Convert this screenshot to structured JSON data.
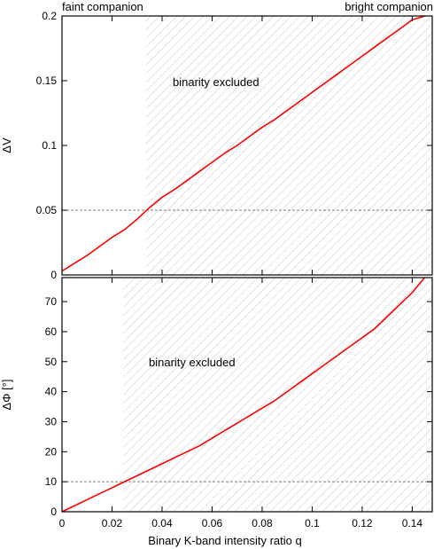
{
  "header": {
    "left_label": "faint companion",
    "right_label": "bright companion"
  },
  "colors": {
    "curve": "#ff0000",
    "hatch": "#c8c8c8",
    "threshold": "#808080",
    "axes": "#000000"
  },
  "chart_data": [
    {
      "type": "line",
      "panel": "top",
      "ylabel": "ΔV",
      "xlabel": "",
      "xlim": [
        0,
        0.148
      ],
      "ylim": [
        0,
        0.2
      ],
      "yticks": [
        0,
        0.05,
        0.1,
        0.15,
        0.2
      ],
      "ytick_labels": [
        "0",
        "0.05",
        "0.1",
        "0.15",
        "0.2"
      ],
      "xticks": [
        0,
        0.02,
        0.04,
        0.06,
        0.08,
        0.1,
        0.12,
        0.14
      ],
      "show_xtick_labels": false,
      "threshold": 0.05,
      "excluded_from_x": 0.0335,
      "annotation": "binarity excluded",
      "series": [
        {
          "x": [
            0,
            0.005,
            0.01,
            0.015,
            0.02,
            0.025,
            0.03,
            0.035,
            0.04,
            0.045,
            0.05,
            0.055,
            0.06,
            0.065,
            0.07,
            0.075,
            0.08,
            0.085,
            0.09,
            0.095,
            0.1,
            0.105,
            0.11,
            0.115,
            0.12,
            0.125,
            0.13,
            0.135,
            0.14,
            0.145
          ],
          "y": [
            0.003,
            0.009,
            0.015,
            0.022,
            0.029,
            0.035,
            0.043,
            0.052,
            0.06,
            0.066,
            0.073,
            0.08,
            0.087,
            0.094,
            0.1,
            0.107,
            0.114,
            0.12,
            0.127,
            0.134,
            0.141,
            0.148,
            0.155,
            0.162,
            0.169,
            0.176,
            0.183,
            0.19,
            0.197,
            0.202
          ]
        }
      ]
    },
    {
      "type": "line",
      "panel": "bottom",
      "ylabel": "ΔΦ [°]",
      "xlabel": "Binary K-band intensity ratio q",
      "xlim": [
        0,
        0.148
      ],
      "ylim": [
        0,
        78
      ],
      "yticks": [
        0,
        10,
        20,
        30,
        40,
        50,
        60,
        70
      ],
      "ytick_labels": [
        "0",
        "10",
        "20",
        "30",
        "40",
        "50",
        "60",
        "70"
      ],
      "xticks": [
        0,
        0.02,
        0.04,
        0.06,
        0.08,
        0.1,
        0.12,
        0.14
      ],
      "xtick_labels": [
        "0",
        "0.02",
        "0.04",
        "0.06",
        "0.08",
        "0.1",
        "0.12",
        "0.14"
      ],
      "threshold": 10,
      "excluded_from_x": 0.0245,
      "annotation": "binarity excluded",
      "series": [
        {
          "x": [
            0,
            0.005,
            0.01,
            0.015,
            0.02,
            0.025,
            0.03,
            0.035,
            0.04,
            0.045,
            0.05,
            0.055,
            0.06,
            0.065,
            0.07,
            0.075,
            0.08,
            0.085,
            0.09,
            0.095,
            0.1,
            0.105,
            0.11,
            0.115,
            0.12,
            0.125,
            0.13,
            0.135,
            0.14,
            0.145
          ],
          "y": [
            0,
            2,
            4,
            6,
            8,
            10,
            12,
            14,
            16,
            18,
            20,
            22,
            24.5,
            27,
            29.5,
            32,
            34.5,
            37,
            40,
            43,
            46,
            49,
            52,
            55,
            58,
            61,
            65,
            69,
            73,
            78
          ]
        }
      ]
    }
  ]
}
